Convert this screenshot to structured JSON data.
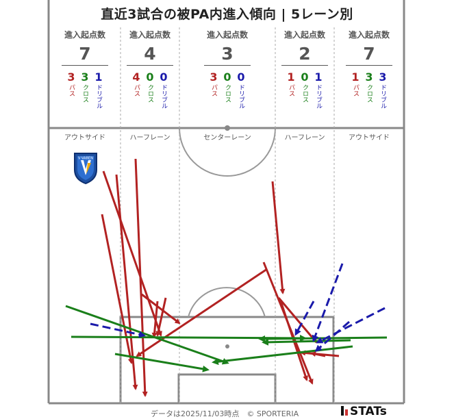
{
  "title": "直近3試合の被PA内進入傾向 | 5レーン別",
  "footer": "データは2025/11/03時点　© SPORTERIA",
  "stats_logo": "STATs",
  "team_badge": {
    "text": "V·VAREN",
    "icon": "team-crest-icon"
  },
  "colors": {
    "pass": "#b22222",
    "cross": "#1a7f1a",
    "dribble": "#1a1aaa"
  },
  "labels": {
    "entries": "進入起点数",
    "pass": "パス",
    "cross": "クロス",
    "dribble": "ドリブル"
  },
  "lanes": [
    {
      "name": "アウトサイド",
      "total": "7",
      "pass": "3",
      "cross": "3",
      "dribble": "1"
    },
    {
      "name": "ハーフレーン",
      "total": "4",
      "pass": "4",
      "cross": "0",
      "dribble": "0"
    },
    {
      "name": "センターレーン",
      "total": "3",
      "pass": "3",
      "cross": "0",
      "dribble": "0"
    },
    {
      "name": "ハーフレーン",
      "total": "2",
      "pass": "1",
      "cross": "0",
      "dribble": "1"
    },
    {
      "name": "アウトサイド",
      "total": "7",
      "pass": "1",
      "cross": "3",
      "dribble": "3"
    }
  ]
}
